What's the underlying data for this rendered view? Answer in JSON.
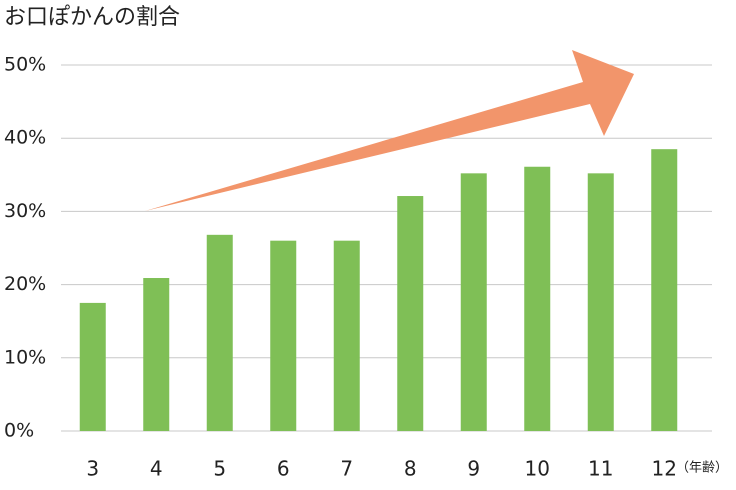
{
  "chart_data": {
    "type": "bar",
    "title": "お口ぽかんの割合",
    "x_label": "（年齢）",
    "categories": [
      "3",
      "4",
      "5",
      "6",
      "7",
      "8",
      "9",
      "10",
      "11",
      "12"
    ],
    "values": [
      17.5,
      20.9,
      26.8,
      26.0,
      26.0,
      32.1,
      35.2,
      36.1,
      35.2,
      38.5
    ],
    "color": "#7fbf56",
    "ylim": [
      0,
      50
    ],
    "yticks": [
      {
        "value": 0,
        "label": "0%"
      },
      {
        "value": 10,
        "label": "10%"
      },
      {
        "value": 20,
        "label": "20%"
      },
      {
        "value": 30,
        "label": "30%"
      },
      {
        "value": 40,
        "label": "40%"
      },
      {
        "value": 50,
        "label": "50%"
      }
    ],
    "grid": true
  }
}
